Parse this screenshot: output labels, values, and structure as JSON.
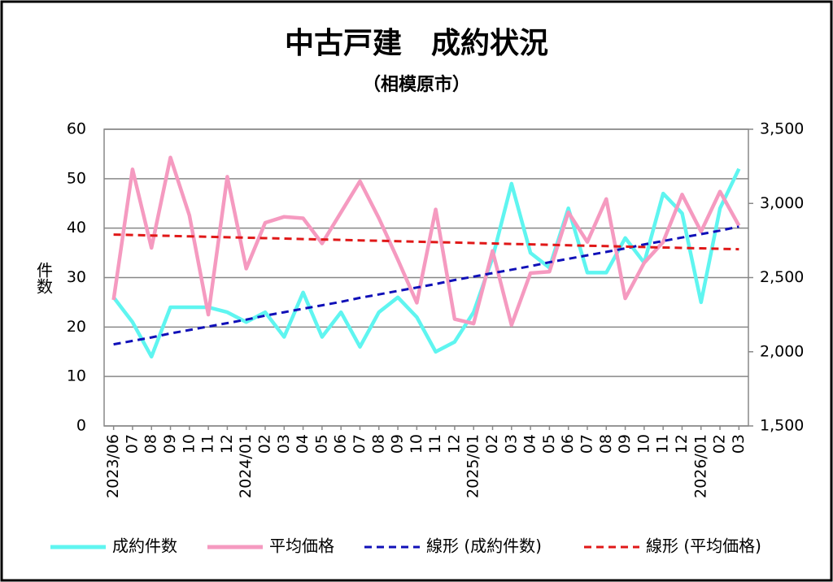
{
  "chart_data": {
    "type": "line",
    "title": "中古戸建　成約状況",
    "subtitle": "（相模原市）",
    "y_label": "件数",
    "categories": [
      "2023/06",
      "07",
      "08",
      "09",
      "10",
      "11",
      "12",
      "2024/01",
      "02",
      "03",
      "04",
      "05",
      "06",
      "07",
      "08",
      "09",
      "10",
      "11",
      "12",
      "2025/01",
      "02",
      "03",
      "04",
      "05",
      "06",
      "07",
      "08",
      "09",
      "10",
      "11",
      "12",
      "2026/01",
      "02",
      "03"
    ],
    "ylim": [
      0,
      60
    ],
    "yticks": [
      0,
      10,
      20,
      30,
      40,
      50,
      60
    ],
    "y2lim": [
      1500,
      3500
    ],
    "y2ticks": [
      {
        "value": 1500,
        "label": "1,500"
      },
      {
        "value": 2000,
        "label": "2,000"
      },
      {
        "value": 2500,
        "label": "2,500"
      },
      {
        "value": 3000,
        "label": "3,000"
      },
      {
        "value": 3500,
        "label": "3,500"
      }
    ],
    "grid": true,
    "legend": "bottom",
    "series": [
      {
        "name": "成約件数",
        "color": "#5ff5f0",
        "values": [
          26,
          21,
          14,
          24,
          24,
          24,
          23,
          21,
          23,
          18,
          27,
          18,
          23,
          16,
          23,
          26,
          22,
          15,
          17,
          23,
          34,
          49,
          35,
          32,
          44,
          31,
          31,
          38,
          33,
          47,
          43,
          25,
          44,
          52
        ]
      },
      {
        "name": "平均価格",
        "color": "#f59ac0",
        "axis": "y2",
        "values": [
          2350,
          3230,
          2700,
          3310,
          2920,
          2250,
          3180,
          2560,
          2870,
          2910,
          2900,
          2730,
          2940,
          3150,
          2900,
          2620,
          2330,
          2960,
          2220,
          2190,
          2680,
          2180,
          2530,
          2540,
          2940,
          2740,
          3030,
          2360,
          2600,
          2740,
          3060,
          2810,
          3080,
          2850
        ]
      },
      {
        "name": "線形 (成約件数)",
        "color": "#1010b8",
        "dashed": true,
        "values": [
          16.5,
          17.2,
          17.9,
          18.7,
          19.4,
          20.1,
          20.8,
          21.5,
          22.3,
          23.0,
          23.7,
          24.4,
          25.1,
          25.9,
          26.6,
          27.3,
          28.0,
          28.7,
          29.5,
          30.2,
          30.9,
          31.6,
          32.3,
          33.1,
          33.8,
          34.5,
          35.2,
          35.9,
          36.7,
          37.4,
          38.1,
          38.8,
          39.5,
          40.3
        ]
      },
      {
        "name": "線形 (平均価格)",
        "color": "#e01818",
        "dashed": true,
        "axis": "y2",
        "values": [
          2790,
          2787,
          2784,
          2781,
          2778,
          2775,
          2772,
          2769,
          2766,
          2763,
          2760,
          2757,
          2754,
          2751,
          2748,
          2745,
          2742,
          2739,
          2736,
          2733,
          2730,
          2727,
          2724,
          2721,
          2718,
          2715,
          2712,
          2709,
          2706,
          2703,
          2700,
          2697,
          2694,
          2691
        ]
      }
    ]
  }
}
